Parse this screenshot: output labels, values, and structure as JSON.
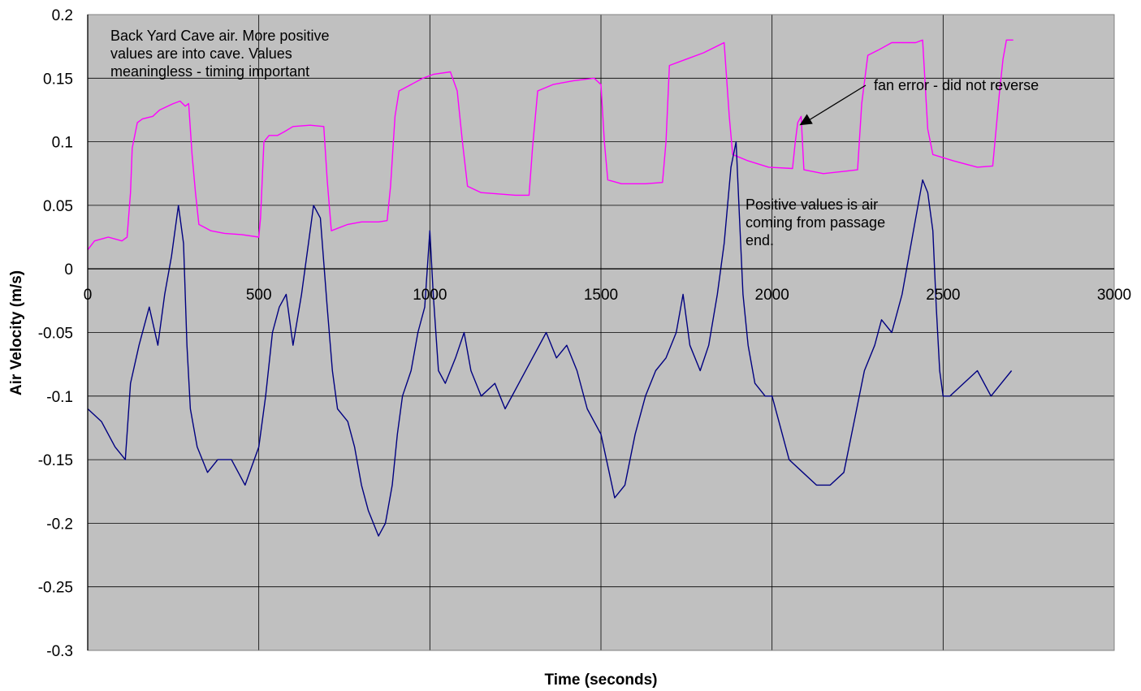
{
  "chart_data": {
    "type": "line",
    "xlabel": "Time (seconds)",
    "ylabel": "Air Velocity (m/s)",
    "xlim": [
      0,
      3000
    ],
    "ylim": [
      -0.3,
      0.2
    ],
    "x_ticks": [
      0,
      500,
      1000,
      1500,
      2000,
      2500,
      3000
    ],
    "y_ticks": [
      0.2,
      0.15,
      0.1,
      0.05,
      0,
      -0.05,
      -0.1,
      -0.15,
      -0.2,
      -0.25,
      -0.3
    ],
    "x_tick_labels": [
      "0",
      "500",
      "1000",
      "1500",
      "2000",
      "2500",
      "3000"
    ],
    "y_tick_labels": [
      "0.2",
      "0.15",
      "0.1",
      "0.05",
      "0",
      "-0.05",
      "-0.1",
      "-0.15",
      "-0.2",
      "-0.25",
      "-0.3"
    ],
    "grid": true,
    "plot_background": "#c0c0c0",
    "series": [
      {
        "key": "back_yard",
        "color": "#ff00ff",
        "points": [
          [
            0,
            0.015
          ],
          [
            20,
            0.022
          ],
          [
            60,
            0.025
          ],
          [
            100,
            0.022
          ],
          [
            115,
            0.025
          ],
          [
            125,
            0.06
          ],
          [
            130,
            0.095
          ],
          [
            145,
            0.115
          ],
          [
            160,
            0.118
          ],
          [
            190,
            0.12
          ],
          [
            210,
            0.125
          ],
          [
            250,
            0.13
          ],
          [
            270,
            0.132
          ],
          [
            285,
            0.128
          ],
          [
            295,
            0.13
          ],
          [
            305,
            0.09
          ],
          [
            315,
            0.06
          ],
          [
            325,
            0.035
          ],
          [
            360,
            0.03
          ],
          [
            400,
            0.028
          ],
          [
            450,
            0.027
          ],
          [
            500,
            0.025
          ],
          [
            505,
            0.04
          ],
          [
            515,
            0.1
          ],
          [
            530,
            0.105
          ],
          [
            555,
            0.105
          ],
          [
            575,
            0.108
          ],
          [
            600,
            0.112
          ],
          [
            650,
            0.113
          ],
          [
            690,
            0.112
          ],
          [
            700,
            0.07
          ],
          [
            712,
            0.03
          ],
          [
            760,
            0.035
          ],
          [
            800,
            0.037
          ],
          [
            850,
            0.037
          ],
          [
            875,
            0.038
          ],
          [
            885,
            0.065
          ],
          [
            898,
            0.12
          ],
          [
            910,
            0.14
          ],
          [
            945,
            0.145
          ],
          [
            980,
            0.15
          ],
          [
            1010,
            0.153
          ],
          [
            1060,
            0.155
          ],
          [
            1080,
            0.14
          ],
          [
            1095,
            0.1
          ],
          [
            1110,
            0.065
          ],
          [
            1150,
            0.06
          ],
          [
            1250,
            0.058
          ],
          [
            1290,
            0.058
          ],
          [
            1300,
            0.095
          ],
          [
            1315,
            0.14
          ],
          [
            1360,
            0.145
          ],
          [
            1420,
            0.148
          ],
          [
            1480,
            0.15
          ],
          [
            1500,
            0.145
          ],
          [
            1510,
            0.1
          ],
          [
            1520,
            0.07
          ],
          [
            1560,
            0.067
          ],
          [
            1630,
            0.067
          ],
          [
            1680,
            0.068
          ],
          [
            1690,
            0.1
          ],
          [
            1700,
            0.16
          ],
          [
            1750,
            0.165
          ],
          [
            1800,
            0.17
          ],
          [
            1860,
            0.178
          ],
          [
            1875,
            0.12
          ],
          [
            1885,
            0.09
          ],
          [
            1930,
            0.085
          ],
          [
            1990,
            0.08
          ],
          [
            2060,
            0.079
          ],
          [
            2068,
            0.1
          ],
          [
            2075,
            0.115
          ],
          [
            2085,
            0.12
          ],
          [
            2093,
            0.078
          ],
          [
            2150,
            0.075
          ],
          [
            2220,
            0.077
          ],
          [
            2250,
            0.078
          ],
          [
            2262,
            0.13
          ],
          [
            2280,
            0.168
          ],
          [
            2310,
            0.172
          ],
          [
            2350,
            0.178
          ],
          [
            2420,
            0.178
          ],
          [
            2440,
            0.18
          ],
          [
            2455,
            0.11
          ],
          [
            2470,
            0.09
          ],
          [
            2530,
            0.085
          ],
          [
            2600,
            0.08
          ],
          [
            2645,
            0.081
          ],
          [
            2655,
            0.11
          ],
          [
            2665,
            0.14
          ],
          [
            2675,
            0.165
          ],
          [
            2685,
            0.18
          ],
          [
            2705,
            0.18
          ]
        ]
      },
      {
        "key": "passage_end",
        "color": "#000080",
        "points": [
          [
            0,
            -0.11
          ],
          [
            40,
            -0.12
          ],
          [
            80,
            -0.14
          ],
          [
            110,
            -0.15
          ],
          [
            125,
            -0.09
          ],
          [
            150,
            -0.06
          ],
          [
            180,
            -0.03
          ],
          [
            205,
            -0.06
          ],
          [
            225,
            -0.02
          ],
          [
            245,
            0.01
          ],
          [
            265,
            0.05
          ],
          [
            280,
            0.02
          ],
          [
            290,
            -0.06
          ],
          [
            300,
            -0.11
          ],
          [
            320,
            -0.14
          ],
          [
            350,
            -0.16
          ],
          [
            380,
            -0.15
          ],
          [
            420,
            -0.15
          ],
          [
            460,
            -0.17
          ],
          [
            500,
            -0.14
          ],
          [
            520,
            -0.1
          ],
          [
            540,
            -0.05
          ],
          [
            560,
            -0.03
          ],
          [
            580,
            -0.02
          ],
          [
            600,
            -0.06
          ],
          [
            625,
            -0.02
          ],
          [
            645,
            0.02
          ],
          [
            660,
            0.05
          ],
          [
            680,
            0.04
          ],
          [
            700,
            -0.03
          ],
          [
            715,
            -0.08
          ],
          [
            730,
            -0.11
          ],
          [
            760,
            -0.12
          ],
          [
            780,
            -0.14
          ],
          [
            800,
            -0.17
          ],
          [
            820,
            -0.19
          ],
          [
            850,
            -0.21
          ],
          [
            870,
            -0.2
          ],
          [
            890,
            -0.17
          ],
          [
            905,
            -0.13
          ],
          [
            920,
            -0.1
          ],
          [
            945,
            -0.08
          ],
          [
            965,
            -0.05
          ],
          [
            985,
            -0.03
          ],
          [
            1000,
            0.03
          ],
          [
            1010,
            -0.02
          ],
          [
            1025,
            -0.08
          ],
          [
            1045,
            -0.09
          ],
          [
            1075,
            -0.07
          ],
          [
            1100,
            -0.05
          ],
          [
            1120,
            -0.08
          ],
          [
            1150,
            -0.1
          ],
          [
            1190,
            -0.09
          ],
          [
            1220,
            -0.11
          ],
          [
            1260,
            -0.09
          ],
          [
            1300,
            -0.07
          ],
          [
            1340,
            -0.05
          ],
          [
            1370,
            -0.07
          ],
          [
            1400,
            -0.06
          ],
          [
            1430,
            -0.08
          ],
          [
            1460,
            -0.11
          ],
          [
            1500,
            -0.13
          ],
          [
            1540,
            -0.18
          ],
          [
            1570,
            -0.17
          ],
          [
            1600,
            -0.13
          ],
          [
            1630,
            -0.1
          ],
          [
            1660,
            -0.08
          ],
          [
            1690,
            -0.07
          ],
          [
            1720,
            -0.05
          ],
          [
            1740,
            -0.02
          ],
          [
            1760,
            -0.06
          ],
          [
            1790,
            -0.08
          ],
          [
            1815,
            -0.06
          ],
          [
            1840,
            -0.02
          ],
          [
            1860,
            0.02
          ],
          [
            1880,
            0.08
          ],
          [
            1895,
            0.1
          ],
          [
            1905,
            0.04
          ],
          [
            1915,
            -0.02
          ],
          [
            1930,
            -0.06
          ],
          [
            1950,
            -0.09
          ],
          [
            1980,
            -0.1
          ],
          [
            2000,
            -0.1
          ],
          [
            2020,
            -0.12
          ],
          [
            2050,
            -0.15
          ],
          [
            2090,
            -0.16
          ],
          [
            2130,
            -0.17
          ],
          [
            2170,
            -0.17
          ],
          [
            2210,
            -0.16
          ],
          [
            2240,
            -0.12
          ],
          [
            2270,
            -0.08
          ],
          [
            2300,
            -0.06
          ],
          [
            2320,
            -0.04
          ],
          [
            2350,
            -0.05
          ],
          [
            2380,
            -0.02
          ],
          [
            2400,
            0.01
          ],
          [
            2420,
            0.04
          ],
          [
            2440,
            0.07
          ],
          [
            2455,
            0.06
          ],
          [
            2470,
            0.03
          ],
          [
            2480,
            -0.03
          ],
          [
            2490,
            -0.08
          ],
          [
            2500,
            -0.1
          ],
          [
            2520,
            -0.1
          ],
          [
            2560,
            -0.09
          ],
          [
            2600,
            -0.08
          ],
          [
            2640,
            -0.1
          ],
          [
            2670,
            -0.09
          ],
          [
            2700,
            -0.08
          ]
        ]
      }
    ],
    "annotations": [
      {
        "key": "box_note",
        "lines": [
          "Back Yard Cave air. More positive",
          "values are into cave.  Values",
          "meaningless - timing important"
        ]
      },
      {
        "key": "fan_error",
        "lines": [
          "fan error - did not reverse"
        ],
        "arrow_to": [
          2080,
          0.113
        ]
      },
      {
        "key": "positive_note",
        "lines": [
          "Positive values is air",
          "coming from passage",
          "end."
        ]
      }
    ]
  }
}
